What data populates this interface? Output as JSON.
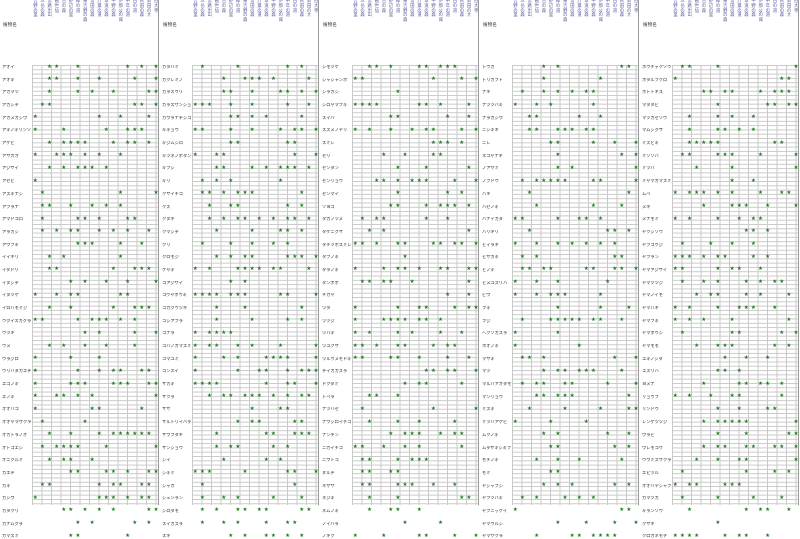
{
  "name_header": "植物名",
  "star_glyph": "★",
  "star_color": "#1f7a1f",
  "header_color": "#5a5aa0",
  "columns": [
    "吉野の里",
    "三岳の森",
    "宮路出山",
    "観世仙",
    "台の森",
    "野辺の里",
    "緑の道",
    "東吉野の森",
    "宮田の森",
    "万葉の道",
    "本道の森",
    "平野の森",
    "伊那公の城",
    "中年の道",
    "西の道",
    "秋田の森",
    "新田の大",
    "西大寺"
  ],
  "blocks": [
    {
      "names": [
        "アオイ",
        "アオキ",
        "アカマツ",
        "アカシデ",
        "アカメガシワ",
        "アキノキリンソウ",
        "アケビ",
        "アサガオ",
        "アジサイ",
        "アセビ",
        "アズキナシ",
        "アブラナ",
        "アマドコロ",
        "アラカシ",
        "アワブキ",
        "イイギリ",
        "イタドリ",
        "イヌシデ",
        "イヌツゲ",
        "イロハモミジ",
        "ウグイスカグラ",
        "ウツギ",
        "ウメ",
        "ウラジロ",
        "ウリハダカエデ",
        "エゴノキ",
        "エノキ",
        "オオバコ",
        "オオヤマザクラ",
        "オカトラノオ",
        "オトコエシ",
        "オニグルミ",
        "カエデ",
        "カキ",
        "カシワ",
        "カタクリ",
        "カナムグラ",
        "ガマズミ"
      ]
    },
    {
      "names": [
        "カタバミ",
        "カクレミノ",
        "カラスウリ",
        "カラスザンショウ",
        "カワラナデシコ",
        "キキョウ",
        "キジムシロ",
        "キツネノボタン",
        "キブシ",
        "キリ",
        "クサイチゴ",
        "クズ",
        "クヌギ",
        "クマシデ",
        "クリ",
        "クロモジ",
        "ケヤキ",
        "コアジサイ",
        "コウヤボウキ",
        "コガクウツギ",
        "コシアブラ",
        "コナラ",
        "コバノガマズミ",
        "コマユミ",
        "ゴンズイ",
        "サカキ",
        "サクラ",
        "ササ",
        "サルトリイバラ",
        "サワフタギ",
        "サンショウ",
        "シイ",
        "シキミ",
        "シャガ",
        "シュンラン",
        "シロダモ",
        "スイカズラ",
        "スギ"
      ]
    },
    {
      "names": [
        "シモツケ",
        "シャシャンボ",
        "シラカシ",
        "シロヤマブキ",
        "スイバ",
        "スズメノヤリ",
        "スミレ",
        "セリ",
        "センダン",
        "センリョウ",
        "ゼンマイ",
        "ソヨゴ",
        "タカノツメ",
        "タケニグサ",
        "タチツボスミレ",
        "タブノキ",
        "タラノキ",
        "タンポポ",
        "チガヤ",
        "ツタ",
        "ツツジ",
        "ツバキ",
        "ツユクサ",
        "ツルウメモドキ",
        "テイカカズラ",
        "ドクダミ",
        "トベラ",
        "ナツハゼ",
        "ナワシロイチゴ",
        "ナンテン",
        "ニガイチゴ",
        "ニワトコ",
        "ヌルデ",
        "ネザサ",
        "ネジキ",
        "ネムノキ",
        "ノイバラ",
        "ノギク"
      ]
    },
    {
      "names": [
        "トウガ",
        "トリカブト",
        "ナギ",
        "ナツツバキ",
        "ナラガシワ",
        "ニシキギ",
        "ニレ",
        "ネコヤナギ",
        "ノアザミ",
        "ノブドウ",
        "ハギ",
        "ハゼノキ",
        "ハナイカダ",
        "ハリギリ",
        "ヒイラギ",
        "ヒサカキ",
        "ヒノキ",
        "ヒメユズリハ",
        "ビワ",
        "フキ",
        "フジ",
        "ヘクソカズラ",
        "ホオノキ",
        "マサキ",
        "マツ",
        "マルバアオダモ",
        "マンリョウ",
        "ミズキ",
        "ミツバアケビ",
        "ムクノキ",
        "ムラサキシキブ",
        "モチノキ",
        "モミ",
        "ヤシャブシ",
        "ヤブツバキ",
        "ヤブニッケイ",
        "ヤマウルシ",
        "ヤマザクラ"
      ]
    },
    {
      "names": [
        "ホウチャクソウ",
        "ホタルブクロ",
        "ホトトギス",
        "マタタビ",
        "マツカゼソウ",
        "マムシグサ",
        "ミズヒキ",
        "ミゾソバ",
        "ミツバ",
        "ミヤマガマズミ",
        "ムベ",
        "メギ",
        "メナモミ",
        "ヤクシソウ",
        "ヤブコウジ",
        "ヤブラン",
        "ヤマアジサイ",
        "ヤマツツジ",
        "ヤマノイモ",
        "ヤマハギ",
        "ヤマブキ",
        "ヤマボウシ",
        "ヤマモモ",
        "ユキノシタ",
        "ユズリハ",
        "ヨメナ",
        "リョウブ",
        "リンドウ",
        "レンゲツツジ",
        "ワラビ",
        "ワレモコウ",
        "ウワミズザクラ",
        "エビヅル",
        "オオバヤシャブシ",
        "カマツカ",
        "キランソウ",
        "クサギ",
        "クロガネモチ"
      ]
    }
  ]
}
